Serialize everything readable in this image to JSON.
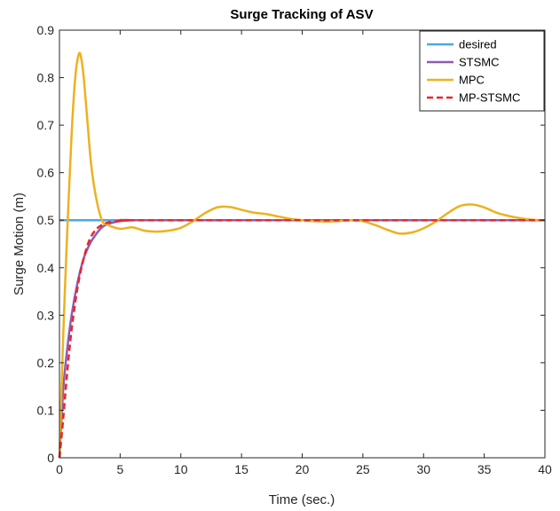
{
  "chart_data": {
    "type": "line",
    "title": "Surge Tracking of ASV",
    "xlabel": "Time (sec.)",
    "ylabel": "Surge Motion (m)",
    "xlim": [
      0,
      40
    ],
    "ylim": [
      0,
      0.9
    ],
    "xticks": [
      0,
      5,
      10,
      15,
      20,
      25,
      30,
      35,
      40
    ],
    "yticks": [
      0,
      0.1,
      0.2,
      0.3,
      0.4,
      0.5,
      0.6,
      0.7,
      0.8,
      0.9
    ],
    "xtick_labels": [
      "0",
      "5",
      "10",
      "15",
      "20",
      "25",
      "30",
      "35",
      "40"
    ],
    "ytick_labels": [
      "0",
      "0.1",
      "0.2",
      "0.3",
      "0.4",
      "0.5",
      "0.6",
      "0.7",
      "0.8",
      "0.9"
    ],
    "grid": false,
    "legend_position": "top-right",
    "series": [
      {
        "name": "desired",
        "color": "#4DA6E0",
        "dash": "solid",
        "x": [
          0,
          40
        ],
        "y": [
          0.5,
          0.5
        ]
      },
      {
        "name": "STSMC",
        "color": "#8E5CB5",
        "dash": "solid",
        "x": [
          0,
          0.3,
          0.6,
          1.0,
          1.5,
          2.0,
          2.5,
          3.0,
          3.5,
          4.0,
          5.0,
          6.0,
          8.0,
          40
        ],
        "y": [
          0,
          0.14,
          0.22,
          0.3,
          0.37,
          0.42,
          0.45,
          0.47,
          0.485,
          0.492,
          0.498,
          0.5,
          0.5,
          0.5
        ]
      },
      {
        "name": "MPC",
        "color": "#EDB120",
        "dash": "solid",
        "x": [
          0,
          0.3,
          0.6,
          1.0,
          1.3,
          1.6,
          1.8,
          2.0,
          2.3,
          2.6,
          3.0,
          3.5,
          4.0,
          5.0,
          6.0,
          7.0,
          8.0,
          9.0,
          10.0,
          11.0,
          12.0,
          13.0,
          14.0,
          15.0,
          16.0,
          17.0,
          18.0,
          19.0,
          20.0,
          21.0,
          22.0,
          23.0,
          24.0,
          25.0,
          26.0,
          27.0,
          28.0,
          29.0,
          30.0,
          31.0,
          32.0,
          33.0,
          34.0,
          35.0,
          36.0,
          37.0,
          38.0,
          39.0,
          40.0
        ],
        "y": [
          0,
          0.25,
          0.45,
          0.68,
          0.8,
          0.85,
          0.84,
          0.8,
          0.71,
          0.62,
          0.55,
          0.5,
          0.49,
          0.482,
          0.485,
          0.478,
          0.476,
          0.478,
          0.484,
          0.498,
          0.515,
          0.527,
          0.528,
          0.522,
          0.516,
          0.513,
          0.508,
          0.503,
          0.5,
          0.498,
          0.497,
          0.498,
          0.5,
          0.498,
          0.49,
          0.48,
          0.472,
          0.474,
          0.483,
          0.497,
          0.515,
          0.53,
          0.533,
          0.527,
          0.516,
          0.509,
          0.504,
          0.501,
          0.5
        ]
      },
      {
        "name": "MP-STSMC",
        "color": "#E8262B",
        "dash": "dashed",
        "x": [
          0,
          0.3,
          0.6,
          1.0,
          1.5,
          2.0,
          2.5,
          3.0,
          3.5,
          4.0,
          5.0,
          6.0,
          8.0,
          40
        ],
        "y": [
          0,
          0.08,
          0.17,
          0.27,
          0.36,
          0.42,
          0.46,
          0.48,
          0.49,
          0.495,
          0.499,
          0.5,
          0.5,
          0.5
        ]
      }
    ]
  }
}
